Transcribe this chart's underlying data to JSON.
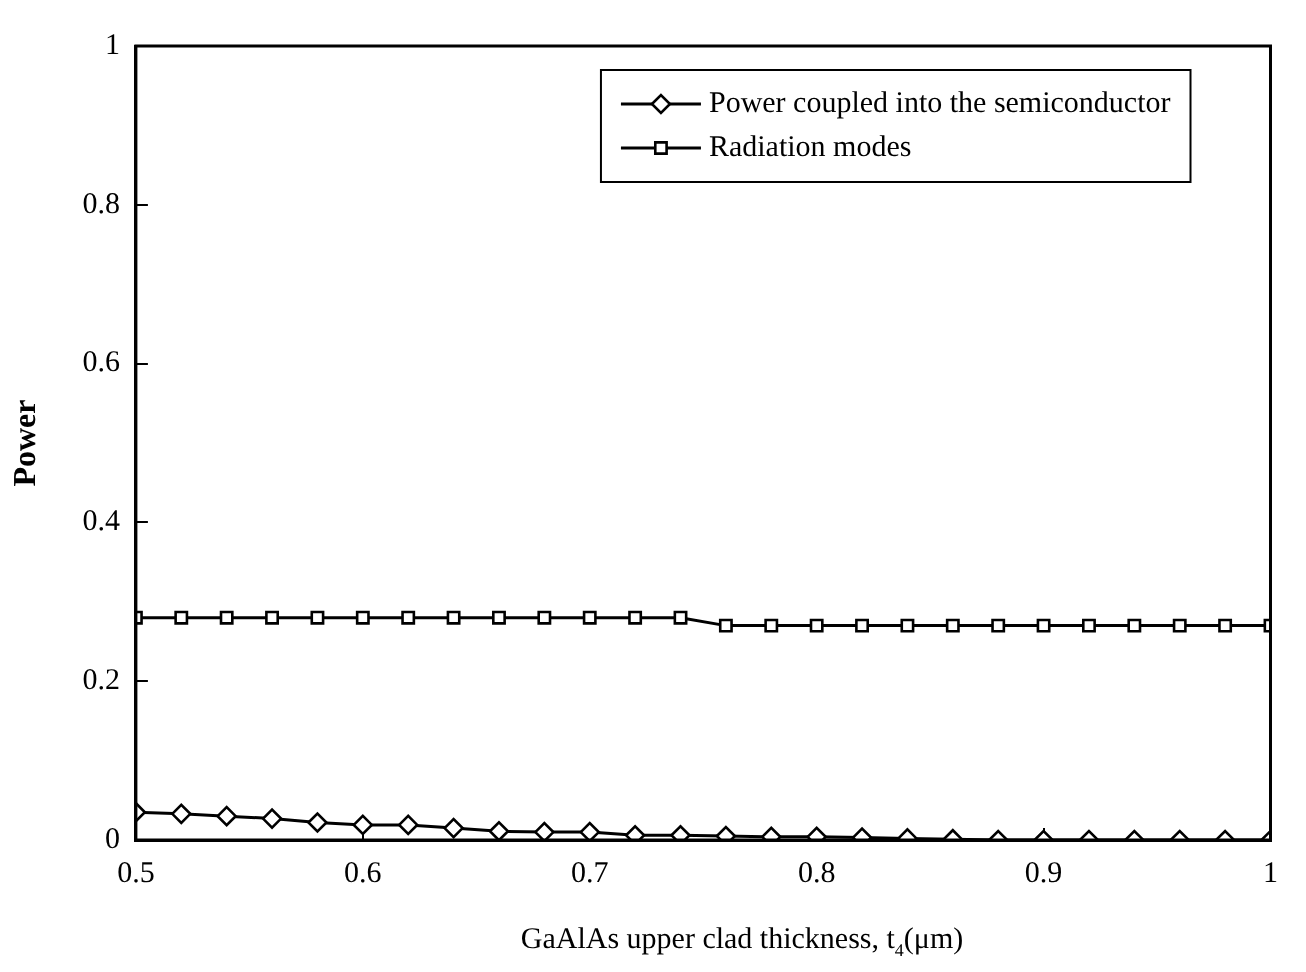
{
  "chart_data": {
    "type": "line",
    "xlabel": "GaAlAs upper clad thickness, t$_{4}$(μm)",
    "ylabel": "Power",
    "x": [
      0.5,
      0.52,
      0.54,
      0.56,
      0.58,
      0.6,
      0.62,
      0.64,
      0.66,
      0.68,
      0.7,
      0.72,
      0.74,
      0.76,
      0.78,
      0.8,
      0.82,
      0.84,
      0.86,
      0.88,
      0.9,
      0.92,
      0.94,
      0.96,
      0.98,
      1.0
    ],
    "series": [
      {
        "name": "Power coupled into the semiconductor",
        "color": "#000000",
        "marker": "diamond",
        "values": [
          0.035,
          0.033,
          0.03,
          0.027,
          0.022,
          0.019,
          0.019,
          0.015,
          0.011,
          0.01,
          0.01,
          0.006,
          0.006,
          0.005,
          0.004,
          0.004,
          0.003,
          0.002,
          0.001,
          0,
          0,
          0,
          0,
          0,
          0,
          0
        ]
      },
      {
        "name": "Radiation modes",
        "color": "#000000",
        "marker": "square",
        "values": [
          0.28,
          0.28,
          0.28,
          0.28,
          0.28,
          0.28,
          0.28,
          0.28,
          0.28,
          0.28,
          0.28,
          0.28,
          0.28,
          0.27,
          0.27,
          0.27,
          0.27,
          0.27,
          0.27,
          0.27,
          0.27,
          0.27,
          0.27,
          0.27,
          0.27,
          0.27
        ]
      }
    ],
    "xlim": [
      0.5,
      1
    ],
    "xticks": [
      0.5,
      0.6,
      0.7,
      0.8,
      0.9,
      1
    ],
    "ylim": [
      0,
      1
    ],
    "yticks": [
      0,
      0.2,
      0.4,
      0.6,
      0.8,
      1
    ],
    "grid": false,
    "legend": "top right",
    "line_style": "solid"
  }
}
